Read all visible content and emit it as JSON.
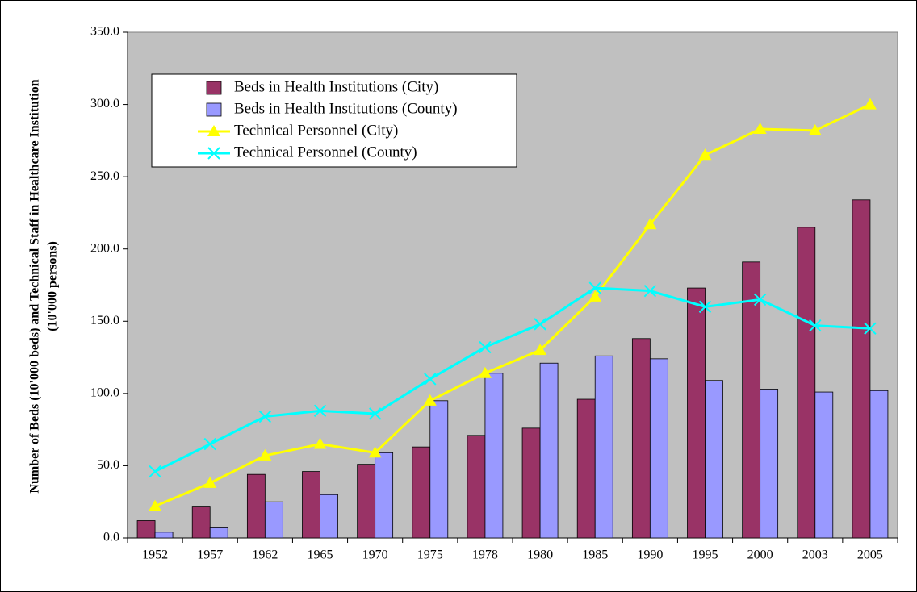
{
  "chart_data": {
    "type": "bar",
    "y_label": "Number of Beds (10'000 beds) and Technical Staff in Healthcare Institution",
    "y_label_2": "(10'000 persons)",
    "categories": [
      "1952",
      "1957",
      "1962",
      "1965",
      "1970",
      "1975",
      "1978",
      "1980",
      "1985",
      "1990",
      "1995",
      "2000",
      "2003",
      "2005"
    ],
    "series": [
      {
        "name": "Beds in Health Institutions (City)",
        "type": "bar",
        "color": "#993366",
        "values": [
          12,
          22,
          44,
          46,
          51,
          63,
          71,
          76,
          96,
          138,
          173,
          191,
          215,
          234
        ]
      },
      {
        "name": "Beds in Health Institutions (County)",
        "type": "bar",
        "color": "#9999ff",
        "values": [
          4,
          7,
          25,
          30,
          59,
          95,
          114,
          121,
          126,
          124,
          109,
          103,
          101,
          102
        ]
      },
      {
        "name": "Technical Personnel (City)",
        "type": "line",
        "marker": "triangle",
        "color": "#ffff00",
        "values": [
          22,
          38,
          57,
          65,
          59,
          95,
          114,
          130,
          167,
          217,
          265,
          283,
          282,
          300
        ]
      },
      {
        "name": "Technical Personnel (County)",
        "type": "line",
        "marker": "x",
        "color": "#00ffff",
        "values": [
          46,
          65,
          84,
          88,
          86,
          110,
          132,
          148,
          173,
          171,
          160,
          165,
          147,
          145
        ]
      }
    ],
    "ylim": [
      0,
      350
    ],
    "yticks": [
      {
        "value": 0,
        "label": "0.0"
      },
      {
        "value": 50,
        "label": "50.0"
      },
      {
        "value": 100,
        "label": "100.0"
      },
      {
        "value": 150,
        "label": "150.0"
      },
      {
        "value": 200,
        "label": "200.0"
      },
      {
        "value": 250,
        "label": "250.0"
      },
      {
        "value": 300,
        "label": "300.0"
      },
      {
        "value": 350,
        "label": "350.0"
      }
    ],
    "plot_background": "#c0c0c0"
  }
}
